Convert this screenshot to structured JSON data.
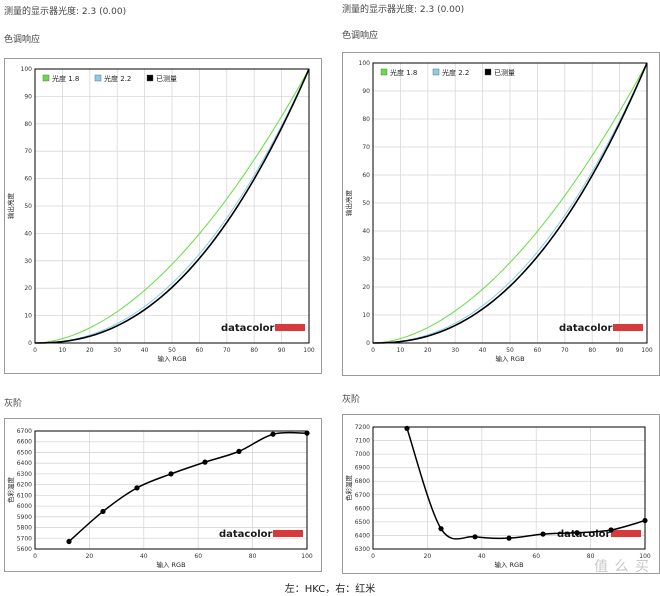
{
  "left": {
    "gamma_header": "测量的显示器光度: 2.3 (0.00)",
    "tone_title": "色调响应",
    "gray_title": "灰阶"
  },
  "right": {
    "gamma_header": "测量的显示器光度: 2.3 (0.00)",
    "tone_title": "色调响应",
    "gray_title": "灰阶"
  },
  "caption": "左：HKC，右：红米",
  "watermark": "值 么 买",
  "brand": "datacolor",
  "colors": {
    "g18": "#66dd44",
    "g22": "#88ccee",
    "measured": "#000000",
    "brand_bar": "#d63a3a"
  },
  "chart_data": [
    {
      "id": "left-tone",
      "type": "line",
      "xlabel": "输入 RGB",
      "ylabel": "输出亮度",
      "xlim": [
        0,
        100
      ],
      "ylim": [
        0,
        100
      ],
      "xticks": [
        0,
        10,
        20,
        30,
        40,
        50,
        60,
        70,
        80,
        90,
        100
      ],
      "yticks": [
        0,
        10,
        20,
        30,
        40,
        50,
        60,
        70,
        80,
        90,
        100
      ],
      "grid": true,
      "legend": "top-left",
      "series": [
        {
          "name": "光度 1.8",
          "color": "#66dd44",
          "gamma": 1.8
        },
        {
          "name": "光度 2.2",
          "color": "#88ccee",
          "gamma": 2.2
        },
        {
          "name": "已测量",
          "color": "#000000",
          "gamma": 2.3
        }
      ]
    },
    {
      "id": "right-tone",
      "type": "line",
      "xlabel": "输入 RGB",
      "ylabel": "输出亮度",
      "xlim": [
        0,
        100
      ],
      "ylim": [
        0,
        100
      ],
      "xticks": [
        0,
        10,
        20,
        30,
        40,
        50,
        60,
        70,
        80,
        90,
        100
      ],
      "yticks": [
        0,
        10,
        20,
        30,
        40,
        50,
        60,
        70,
        80,
        90,
        100
      ],
      "grid": true,
      "legend": "top-left",
      "series": [
        {
          "name": "光度 1.8",
          "color": "#66dd44",
          "gamma": 1.8
        },
        {
          "name": "光度 2.2",
          "color": "#88ccee",
          "gamma": 2.2
        },
        {
          "name": "已测量",
          "color": "#000000",
          "gamma": 2.3
        }
      ]
    },
    {
      "id": "left-gray",
      "type": "line",
      "xlabel": "输入 RGB",
      "ylabel": "色彩温度",
      "xlim": [
        0,
        100
      ],
      "ylim": [
        5600,
        6700
      ],
      "xticks": [
        0,
        20,
        40,
        60,
        80,
        100
      ],
      "yticks": [
        5600,
        5700,
        5800,
        5900,
        6000,
        6100,
        6200,
        6300,
        6400,
        6500,
        6600,
        6700
      ],
      "grid": true,
      "x": [
        12.5,
        25,
        37.5,
        50,
        62.5,
        75,
        87.5,
        100
      ],
      "values": [
        5670,
        5950,
        6170,
        6300,
        6410,
        6510,
        6670,
        6680
      ]
    },
    {
      "id": "right-gray",
      "type": "line",
      "xlabel": "输入 RGB",
      "ylabel": "色彩温度",
      "xlim": [
        0,
        100
      ],
      "ylim": [
        6300,
        7200
      ],
      "xticks": [
        0,
        20,
        40,
        60,
        80,
        100
      ],
      "yticks": [
        6300,
        6400,
        6500,
        6600,
        6700,
        6800,
        6900,
        7000,
        7100,
        7200
      ],
      "grid": true,
      "x": [
        12.5,
        25,
        37.5,
        50,
        62.5,
        75,
        87.5,
        100
      ],
      "values": [
        7190,
        6450,
        6390,
        6380,
        6410,
        6420,
        6440,
        6510
      ]
    }
  ]
}
